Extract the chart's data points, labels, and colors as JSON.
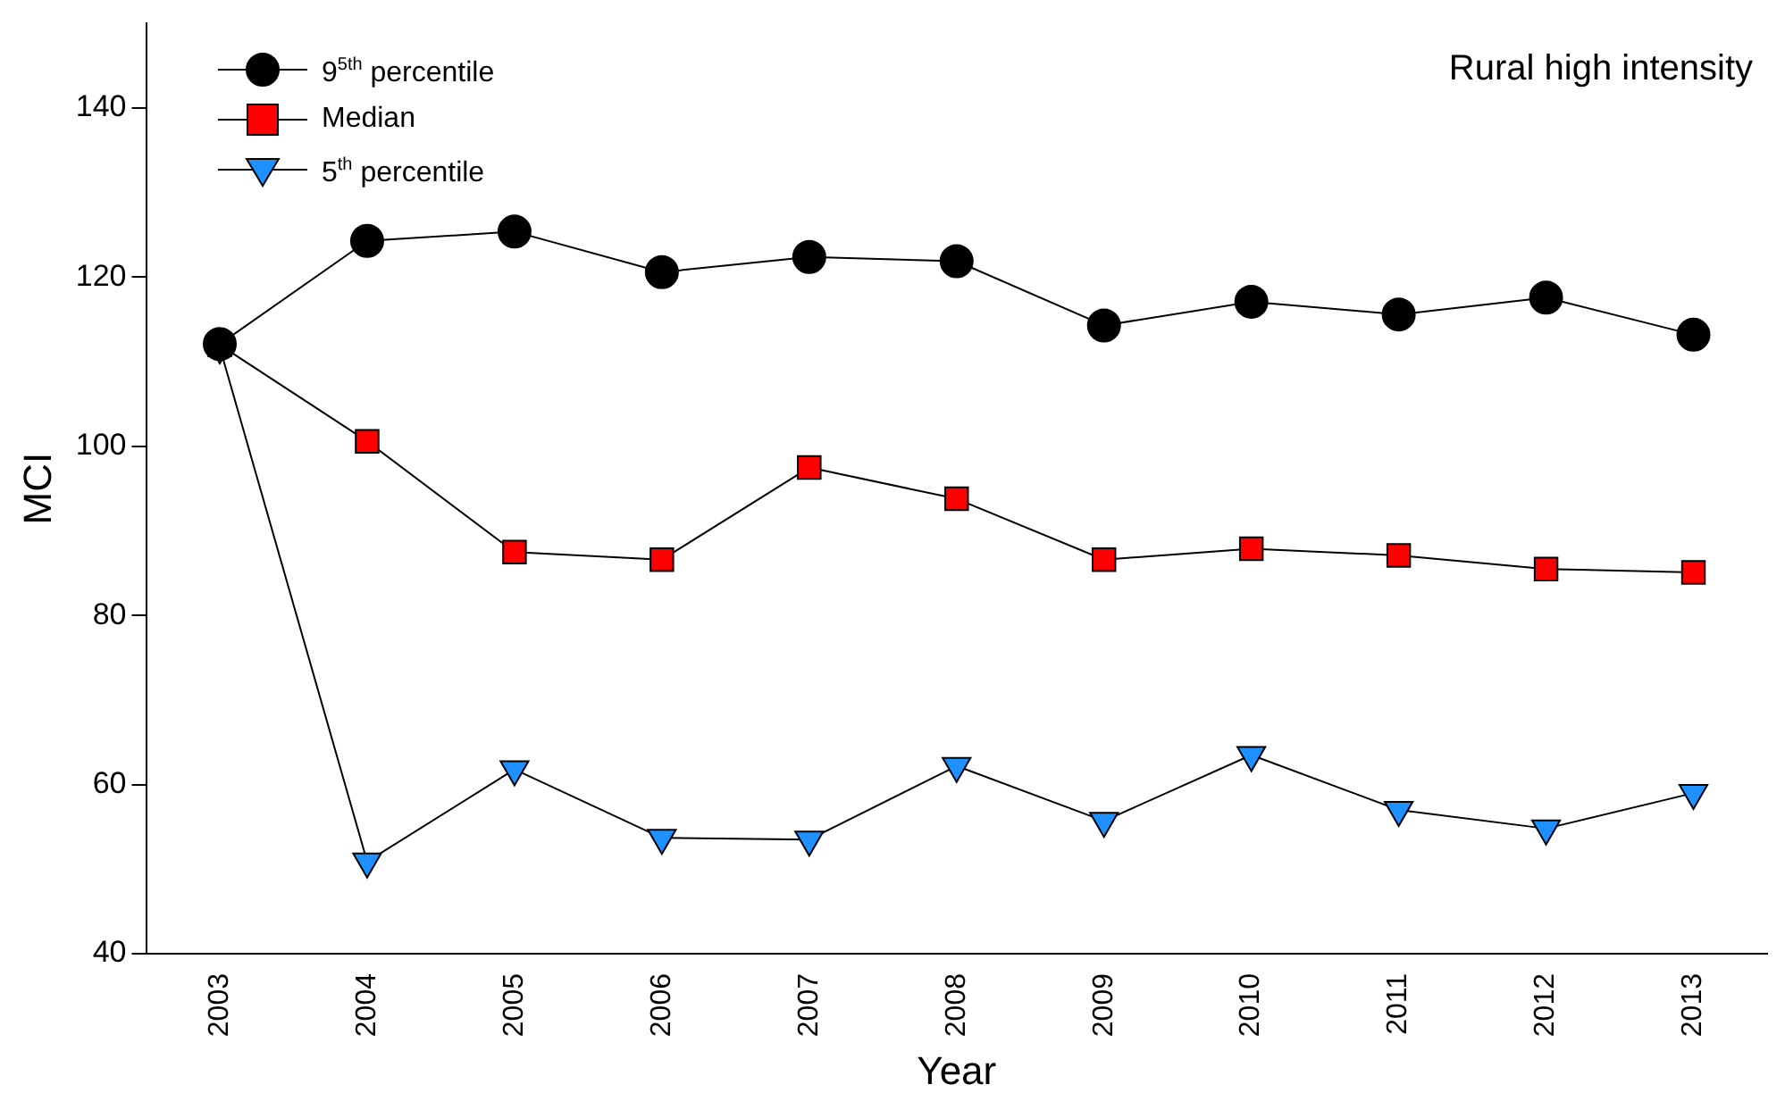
{
  "chart_data": {
    "type": "line",
    "title": "Rural high intensity",
    "xlabel": "Year",
    "ylabel": "MCI",
    "categories": [
      "2003",
      "2004",
      "2005",
      "2006",
      "2007",
      "2008",
      "2009",
      "2010",
      "2011",
      "2012",
      "2013"
    ],
    "ylim": [
      40,
      150
    ],
    "yticks": [
      40,
      60,
      80,
      100,
      120,
      140
    ],
    "grid": false,
    "legend": "top left",
    "line_style": "solid",
    "series": [
      {
        "name": "9$^{5th}$ percentile",
        "color": "#000000",
        "marker": "circle",
        "values": [
          112.1,
          124.3,
          125.4,
          120.6,
          122.4,
          121.9,
          114.3,
          117.1,
          115.6,
          117.6,
          113.2
        ]
      },
      {
        "name": "Median",
        "color": "#ff0000",
        "marker": "square",
        "values": [
          112,
          100.6,
          87.5,
          86.6,
          97.5,
          93.8,
          86.6,
          87.9,
          87.1,
          85.5,
          85.1
        ]
      },
      {
        "name": "5$^{th}$ percentile",
        "color": "#1e90ff",
        "marker": "triangle",
        "values": [
          111.7,
          50.9,
          61.8,
          53.7,
          53.5,
          62.2,
          55.7,
          63.5,
          57,
          54.8,
          59
        ]
      }
    ]
  }
}
